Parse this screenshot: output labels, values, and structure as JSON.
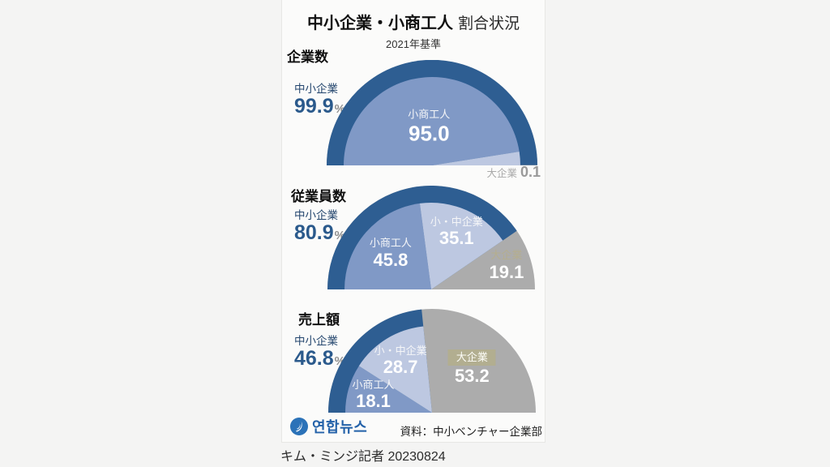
{
  "page": {
    "title_bold": "中小企業・小商工人",
    "title_regular": "割合状況",
    "subtitle": "2021年基準",
    "source": "資料：中小ベンチャー企業部",
    "logo_text": "연합뉴스",
    "credit": "キム・ミンジ記者 20230824"
  },
  "colors": {
    "dark_blue": "#2e5e92",
    "mid_blue": "#8099c6",
    "light_blue": "#bdc8e1",
    "gray": "#acacac",
    "beige": "#b2ae90",
    "navy_label": "#24466e",
    "value_blue": "#2b5a8c",
    "logo_blue": "#2b72b8"
  },
  "chart_data": [
    {
      "type": "pie",
      "variant": "semicircle",
      "section": "企業数",
      "highlight": {
        "label": "中小企業",
        "value": "99.9",
        "unit": "%"
      },
      "ring_pct": 99.9,
      "inner": [
        {
          "label": "小商工人",
          "value": "95.0",
          "pct": 95.0,
          "color_key": "mid_blue",
          "text": "white"
        },
        {
          "label": "",
          "value": "",
          "pct": 5.0,
          "color_key": "light_blue",
          "text": "white"
        }
      ],
      "outside_label": {
        "label": "大企業",
        "value": "0.1"
      }
    },
    {
      "type": "pie",
      "variant": "semicircle",
      "section": "従業員数",
      "highlight": {
        "label": "中小企業",
        "value": "80.9",
        "unit": "%"
      },
      "ring_pct": 80.9,
      "inner": [
        {
          "label": "小商工人",
          "value": "45.8",
          "pct": 45.8,
          "color_key": "mid_blue",
          "text": "white"
        },
        {
          "label": "小・中企業",
          "value": "35.1",
          "pct": 35.1,
          "color_key": "light_blue",
          "text": "white"
        },
        {
          "label": "大企業",
          "value": "19.1",
          "pct": 19.1,
          "color_key": "gray",
          "text": "beige",
          "full_radius": true
        }
      ]
    },
    {
      "type": "pie",
      "variant": "semicircle",
      "section": "売上額",
      "highlight": {
        "label": "中小企業",
        "value": "46.8",
        "unit": "%"
      },
      "ring_pct": 46.8,
      "inner": [
        {
          "label": "小商工人",
          "value": "18.1",
          "pct": 18.1,
          "color_key": "mid_blue",
          "text": "white"
        },
        {
          "label": "小・中企業",
          "value": "28.7",
          "pct": 28.7,
          "color_key": "light_blue",
          "text": "white"
        },
        {
          "label": "大企業",
          "value": "53.2",
          "pct": 53.2,
          "color_key": "gray",
          "text": "white",
          "boxed": true,
          "full_radius": true
        }
      ]
    }
  ]
}
